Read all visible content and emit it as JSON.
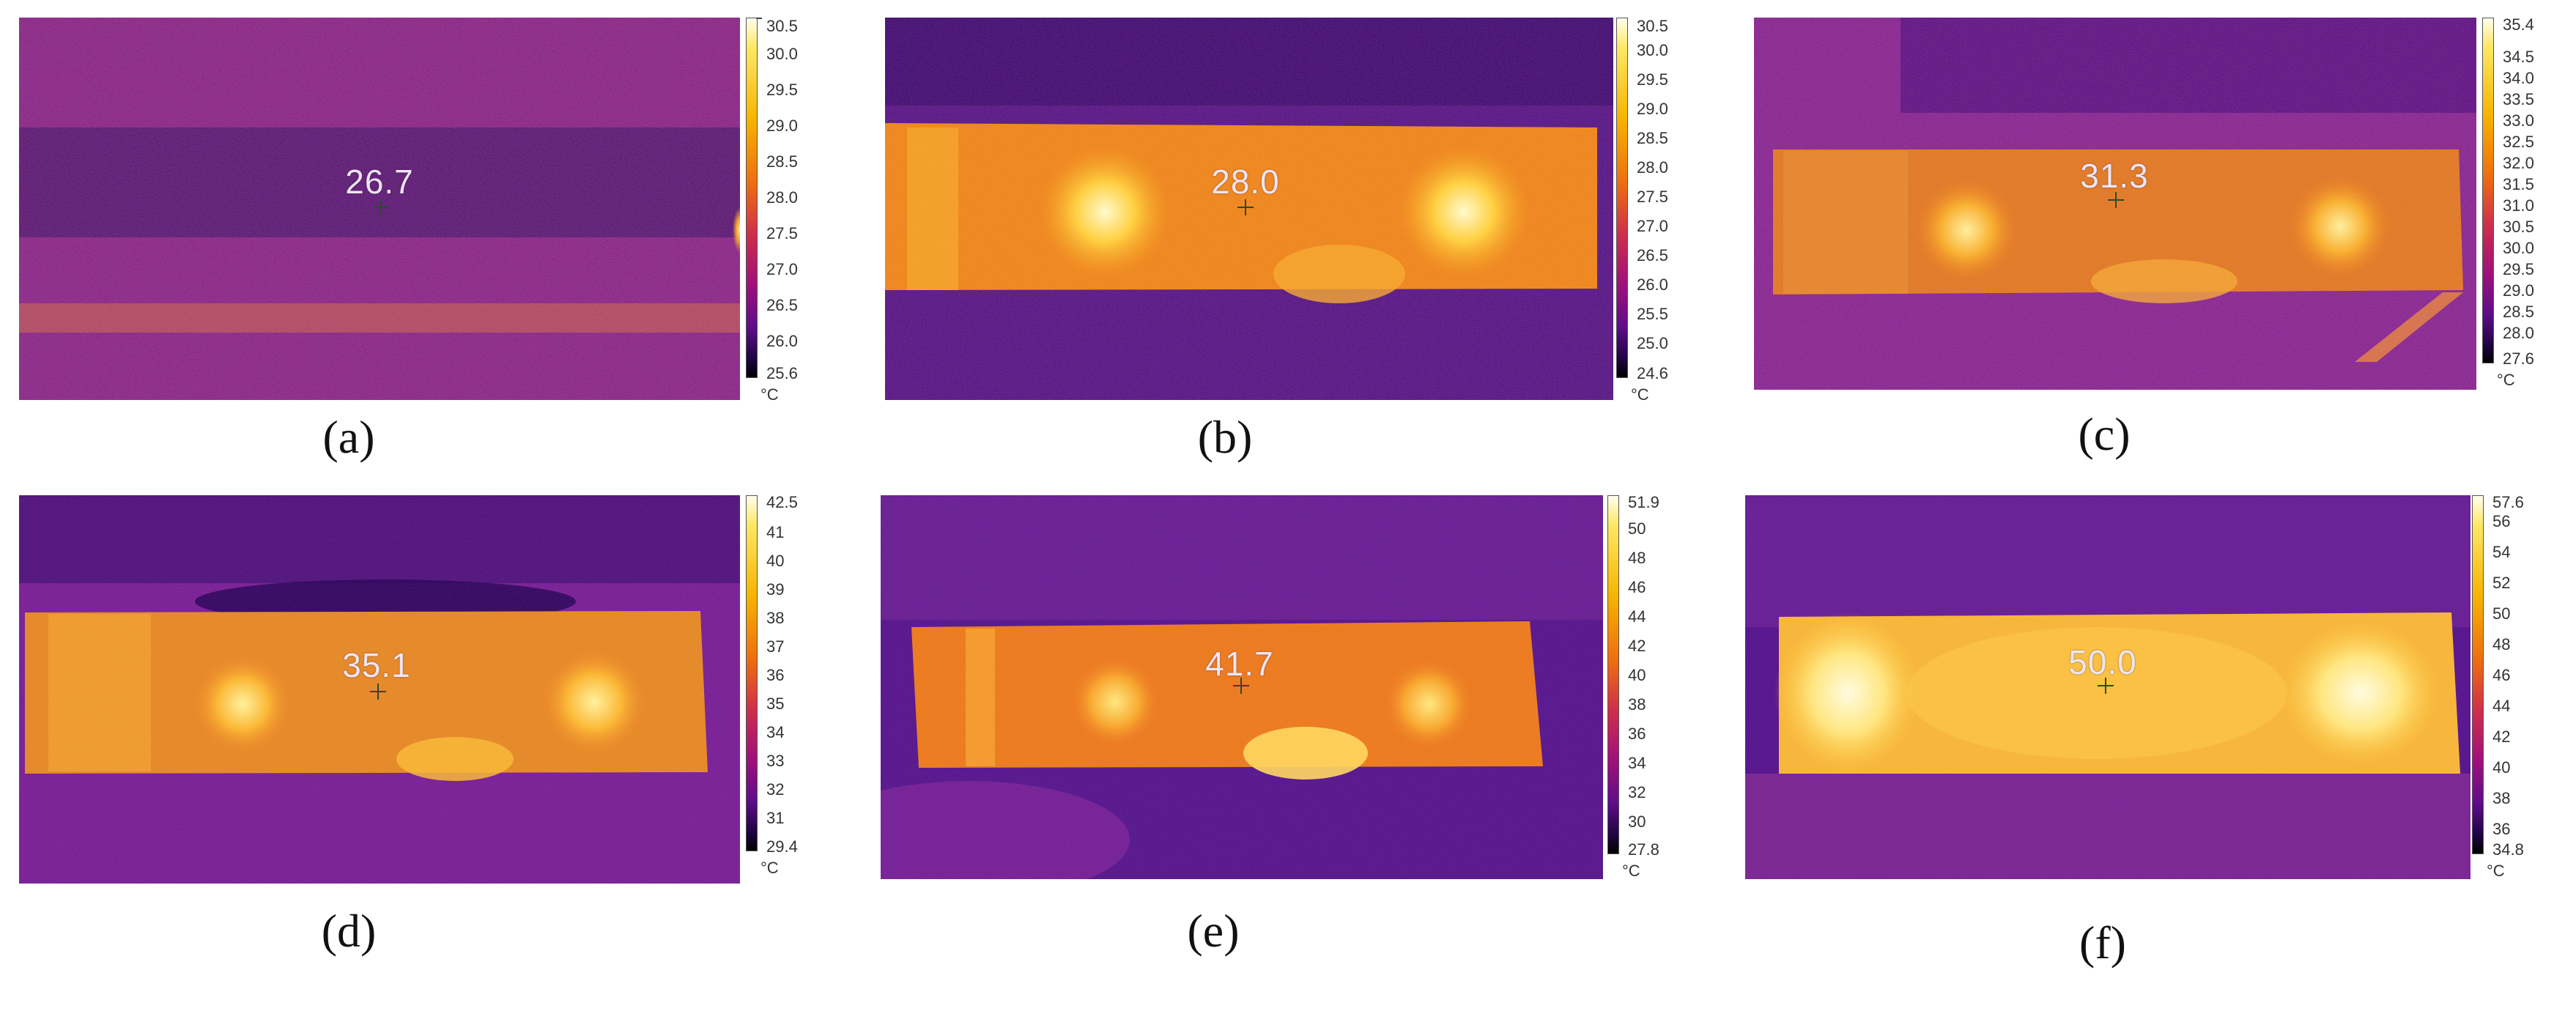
{
  "panels": [
    {
      "caption": "(a)",
      "spot_value": "26.7",
      "scale_labels": [
        "30.5",
        "30.0",
        "29.5",
        "29.0",
        "28.5",
        "28.0",
        "27.5",
        "27.0",
        "26.5",
        "26.0",
        "25.6"
      ],
      "unit": "°C",
      "heat_level": 0.05
    },
    {
      "caption": "(b)",
      "spot_value": "28.0",
      "scale_labels": [
        "30.5",
        "30.0",
        "29.5",
        "29.0",
        "28.5",
        "28.0",
        "27.5",
        "27.0",
        "26.5",
        "26.0",
        "25.5",
        "25.0",
        "24.6"
      ],
      "unit": "°C",
      "heat_level": 0.55
    },
    {
      "caption": "(c)",
      "spot_value": "31.3",
      "scale_labels": [
        "35.4",
        "34.5",
        "34.0",
        "33.5",
        "33.0",
        "32.5",
        "32.0",
        "31.5",
        "31.0",
        "30.5",
        "30.0",
        "29.5",
        "29.0",
        "28.5",
        "28.0",
        "27.6"
      ],
      "unit": "°C",
      "heat_level": 0.45
    },
    {
      "caption": "(d)",
      "spot_value": "35.1",
      "scale_labels": [
        "42.5",
        "41",
        "40",
        "39",
        "38",
        "37",
        "36",
        "35",
        "34",
        "33",
        "32",
        "31",
        "29.4"
      ],
      "unit": "°C",
      "heat_level": 0.55
    },
    {
      "caption": "(e)",
      "spot_value": "41.7",
      "scale_labels": [
        "51.9",
        "50",
        "48",
        "46",
        "44",
        "42",
        "40",
        "38",
        "36",
        "34",
        "32",
        "30",
        "27.8"
      ],
      "unit": "°C",
      "heat_level": 0.6
    },
    {
      "caption": "(f)",
      "spot_value": "50.0",
      "scale_labels": [
        "57.6",
        "56",
        "54",
        "52",
        "50",
        "48",
        "46",
        "44",
        "42",
        "40",
        "38",
        "36",
        "34.8"
      ],
      "unit": "°C",
      "heat_level": 0.85
    }
  ]
}
